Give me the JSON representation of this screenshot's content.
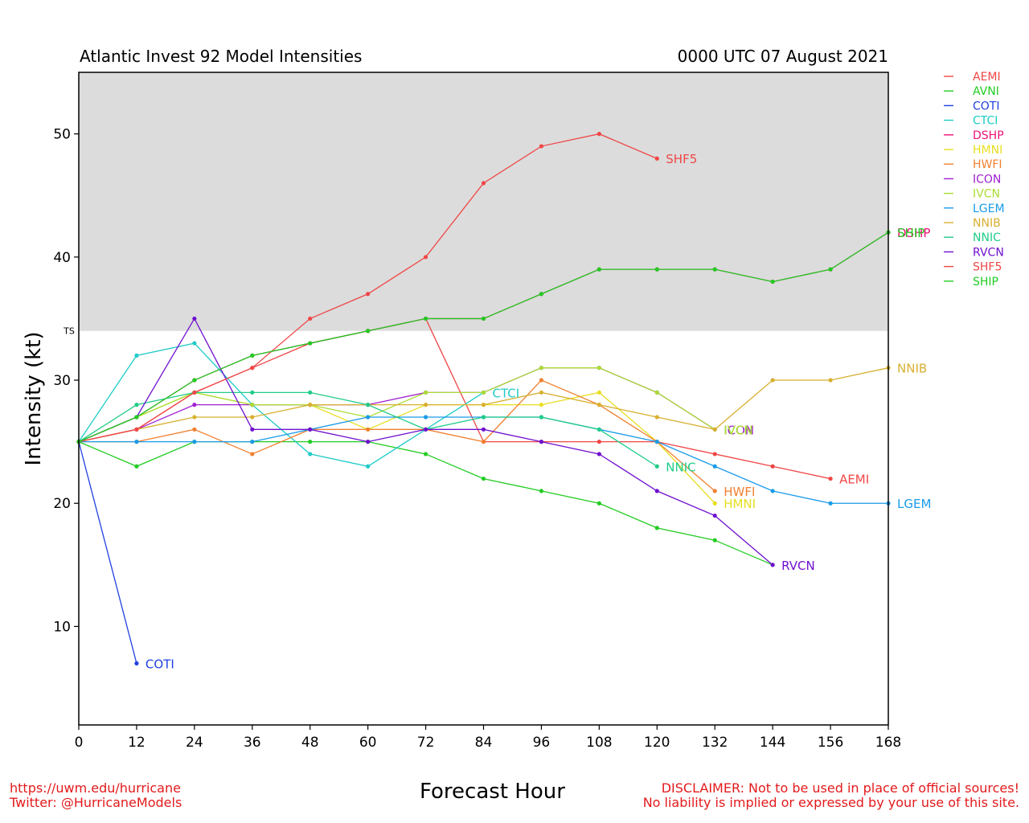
{
  "header": {
    "title": "Atlantic Invest 92 Model Intensities",
    "date": "0000 UTC 07 August 2021"
  },
  "footer": {
    "url": "https://uwm.edu/hurricane",
    "twitter": "Twitter: @HurricaneModels",
    "disclaimer_1": "DISCLAIMER: Not to be used in place of official sources!",
    "disclaimer_2": "No liability is implied or expressed by your use of this site."
  },
  "chart_data": {
    "type": "line",
    "title": "Atlantic Invest 92 Model Intensities",
    "xlabel": "Forecast Hour",
    "ylabel": "Intensity (kt)",
    "xlim": [
      0,
      168
    ],
    "ylim": [
      2,
      55
    ],
    "xticks": [
      0,
      12,
      24,
      36,
      48,
      60,
      72,
      84,
      96,
      108,
      120,
      132,
      144,
      156,
      168
    ],
    "yticks": [
      10,
      20,
      30,
      40,
      50
    ],
    "ts_band": {
      "label": "TS",
      "from": 34,
      "to": 55,
      "color": "#dcdcdc"
    },
    "grid": false,
    "legend_position": "right",
    "series": [
      {
        "name": "AEMI",
        "color": "#f04646",
        "label": "AEMI",
        "x": [
          0,
          12,
          24,
          36,
          48,
          60,
          72,
          84,
          96,
          108,
          120,
          132,
          144,
          156
        ],
        "y": [
          25,
          26,
          29,
          31,
          33,
          34,
          35,
          25,
          25,
          25,
          25,
          24,
          23,
          22
        ]
      },
      {
        "name": "AVNI",
        "color": "#22cc22",
        "label": "AVNI",
        "x": [
          0,
          12,
          24,
          36,
          48,
          60,
          72,
          84,
          96,
          108,
          120,
          132,
          144
        ],
        "y": [
          25,
          23,
          25,
          25,
          25,
          25,
          24,
          22,
          21,
          20,
          18,
          17,
          15
        ]
      },
      {
        "name": "COTI",
        "color": "#2040e0",
        "label": "COTI",
        "x": [
          0,
          12
        ],
        "y": [
          25,
          7
        ]
      },
      {
        "name": "CTCI",
        "color": "#1ecbc8",
        "label": "CTCI",
        "x": [
          0,
          12,
          24,
          36,
          48,
          60,
          72,
          84
        ],
        "y": [
          25,
          32,
          33,
          28,
          24,
          23,
          26,
          29
        ]
      },
      {
        "name": "DSHP",
        "color": "#ee1177",
        "label": "DSHP",
        "x": [
          0,
          12,
          24,
          36,
          48,
          60,
          72,
          84,
          96,
          108,
          120,
          132,
          144,
          156,
          168
        ],
        "y": [
          25,
          27,
          30,
          32,
          33,
          34,
          35,
          35,
          37,
          39,
          39,
          39,
          38,
          39,
          42
        ]
      },
      {
        "name": "HMNI",
        "color": "#e8de20",
        "label": "HMNI",
        "x": [
          0,
          12,
          24,
          36,
          48,
          60,
          72,
          84,
          96,
          108,
          120,
          132
        ],
        "y": [
          25,
          27,
          29,
          28,
          28,
          26,
          28,
          28,
          28,
          29,
          25,
          20
        ]
      },
      {
        "name": "HWFI",
        "color": "#f08030",
        "label": "HWFI",
        "x": [
          0,
          12,
          24,
          36,
          48,
          60,
          72,
          84,
          96,
          108,
          120,
          132
        ],
        "y": [
          25,
          25,
          26,
          24,
          26,
          26,
          26,
          25,
          30,
          28,
          25,
          21
        ]
      },
      {
        "name": "ICON",
        "color": "#a020d0",
        "label": "ICON",
        "x": [
          0,
          12,
          24,
          36,
          48,
          60,
          72,
          84,
          96,
          108,
          120,
          132
        ],
        "y": [
          25,
          26,
          28,
          28,
          28,
          28,
          29,
          29,
          31,
          31,
          29,
          26
        ]
      },
      {
        "name": "IVCN",
        "color": "#aadd33",
        "label": "IVCN",
        "x": [
          0,
          12,
          24,
          36,
          48,
          60,
          72,
          84,
          96,
          108,
          120,
          132
        ],
        "y": [
          25,
          27,
          29,
          28,
          28,
          27,
          29,
          29,
          31,
          31,
          29,
          26
        ]
      },
      {
        "name": "LGEM",
        "color": "#1a9be8",
        "label": "LGEM",
        "x": [
          0,
          12,
          24,
          36,
          48,
          60,
          72,
          84,
          96,
          108,
          120,
          132,
          144,
          156,
          168
        ],
        "y": [
          25,
          25,
          25,
          25,
          26,
          27,
          27,
          27,
          27,
          26,
          25,
          23,
          21,
          20,
          20
        ]
      },
      {
        "name": "NNIB",
        "color": "#d8b030",
        "label": "NNIB",
        "x": [
          0,
          12,
          24,
          36,
          48,
          60,
          72,
          84,
          96,
          108,
          120,
          132,
          144,
          156,
          168
        ],
        "y": [
          25,
          26,
          27,
          27,
          28,
          28,
          28,
          28,
          29,
          28,
          27,
          26,
          30,
          30,
          31
        ]
      },
      {
        "name": "NNIC",
        "color": "#20cc88",
        "label": "NNIC",
        "x": [
          0,
          12,
          24,
          36,
          48,
          60,
          72,
          84,
          96,
          108,
          120
        ],
        "y": [
          25,
          28,
          29,
          29,
          29,
          28,
          26,
          27,
          27,
          26,
          23
        ]
      },
      {
        "name": "RVCN",
        "color": "#7010d0",
        "label": "RVCN",
        "x": [
          0,
          12,
          24,
          36,
          48,
          60,
          72,
          84,
          96,
          108,
          120,
          132,
          144
        ],
        "y": [
          25,
          27,
          35,
          26,
          26,
          25,
          26,
          26,
          25,
          24,
          21,
          19,
          15
        ]
      },
      {
        "name": "SHF5",
        "color": "#f04646",
        "label": "SHF5",
        "x": [
          0,
          12,
          24,
          36,
          48,
          60,
          72,
          84,
          96,
          108,
          120
        ],
        "y": [
          25,
          26,
          29,
          31,
          35,
          37,
          40,
          46,
          49,
          50,
          48
        ]
      },
      {
        "name": "SHIP",
        "color": "#22cc22",
        "label": "SHIP",
        "x": [
          0,
          12,
          24,
          36,
          48,
          60,
          72,
          84,
          96,
          108,
          120,
          132,
          144,
          156,
          168
        ],
        "y": [
          25,
          27,
          30,
          32,
          33,
          34,
          35,
          35,
          37,
          39,
          39,
          39,
          38,
          39,
          42
        ]
      }
    ],
    "end_labels": [
      {
        "text": "COTI",
        "series": "COTI"
      },
      {
        "text": "SHF5",
        "series": "SHF5"
      },
      {
        "text": "CTCI",
        "series": "CTCI"
      },
      {
        "text": "ICON",
        "series": "ICON"
      },
      {
        "text": "NNIC",
        "series": "NNIC"
      },
      {
        "text": "HWFI",
        "series": "HWFI"
      },
      {
        "text": "HMNI",
        "series": "HMNI"
      },
      {
        "text": "AEMI",
        "series": "AEMI"
      },
      {
        "text": "LGEM",
        "series": "LGEM"
      },
      {
        "text": "IVCN",
        "series": "IVCN"
      },
      {
        "text": "RVCN",
        "series": "RVCN"
      },
      {
        "text": "DSHP",
        "series": "DSHP"
      },
      {
        "text": "SHIP",
        "series": "SHIP"
      },
      {
        "text": "NNIB",
        "series": "NNIB"
      },
      {
        "text": "IVCN",
        "series": "IVCN"
      }
    ]
  }
}
